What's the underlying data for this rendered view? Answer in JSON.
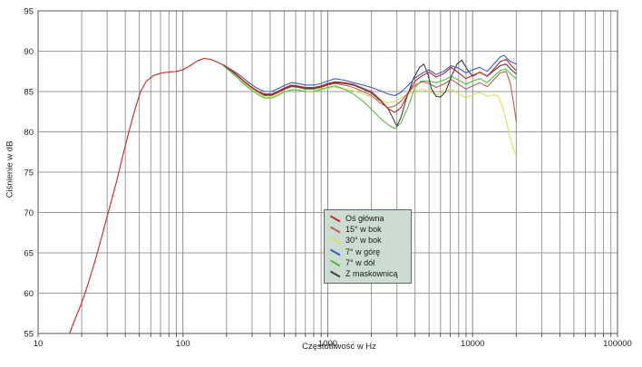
{
  "chart_data": {
    "type": "line",
    "title": "",
    "xlabel": "Częstotliwość w Hz",
    "ylabel": "Ciśnienie w dB",
    "x_scale": "log",
    "xlim": [
      10,
      100000
    ],
    "ylim": [
      55,
      95
    ],
    "x_ticks": [
      "10",
      "100",
      "1000",
      "10000",
      "100000"
    ],
    "y_ticks": [
      "95",
      "90",
      "85",
      "80",
      "75",
      "70",
      "65",
      "60",
      "55"
    ],
    "grid": true,
    "legend_position": "center",
    "legend_bg": "#cddcd3",
    "draw_order": [
      2,
      1,
      4,
      5,
      3,
      0
    ],
    "series": [
      {
        "name": "Oś główna",
        "color": "#c52727",
        "points": [
          [
            16.5,
            55
          ],
          [
            18,
            56.8
          ],
          [
            20,
            58.8
          ],
          [
            22,
            61
          ],
          [
            25,
            64.3
          ],
          [
            28,
            67.5
          ],
          [
            31,
            70.5
          ],
          [
            35,
            74
          ],
          [
            39,
            77.5
          ],
          [
            43,
            80.5
          ],
          [
            47,
            83
          ],
          [
            51,
            85
          ],
          [
            56,
            86.3
          ],
          [
            63,
            87
          ],
          [
            71,
            87.3
          ],
          [
            80,
            87.4
          ],
          [
            90,
            87.5
          ],
          [
            100,
            87.7
          ],
          [
            112,
            88.2
          ],
          [
            126,
            88.8
          ],
          [
            140,
            89.1
          ],
          [
            155,
            89.0
          ],
          [
            170,
            88.7
          ],
          [
            190,
            88.3
          ],
          [
            212,
            87.7
          ],
          [
            235,
            87.1
          ],
          [
            260,
            86.4
          ],
          [
            290,
            85.7
          ],
          [
            325,
            85.1
          ],
          [
            365,
            84.7
          ],
          [
            410,
            84.7
          ],
          [
            460,
            85.1
          ],
          [
            510,
            85.5
          ],
          [
            560,
            85.8
          ],
          [
            620,
            85.7
          ],
          [
            700,
            85.5
          ],
          [
            800,
            85.5
          ],
          [
            900,
            85.7
          ],
          [
            1000,
            86.0
          ],
          [
            1120,
            86.2
          ],
          [
            1300,
            86.1
          ],
          [
            1500,
            85.9
          ],
          [
            1750,
            85.4
          ],
          [
            2000,
            85.0
          ],
          [
            2300,
            84.0
          ],
          [
            2600,
            82.9
          ],
          [
            2900,
            82.4
          ],
          [
            3200,
            83.0
          ],
          [
            3600,
            84.8
          ],
          [
            4000,
            86.3
          ],
          [
            4500,
            87.0
          ],
          [
            5000,
            87.4
          ],
          [
            5600,
            86.8
          ],
          [
            6300,
            87.2
          ],
          [
            7100,
            88.0
          ],
          [
            8000,
            87.3
          ],
          [
            9000,
            86.6
          ],
          [
            10000,
            87.0
          ],
          [
            11200,
            87.4
          ],
          [
            12600,
            86.9
          ],
          [
            14000,
            87.8
          ],
          [
            15500,
            88.7
          ],
          [
            17000,
            89.0
          ],
          [
            18500,
            88.2
          ],
          [
            20000,
            87.6
          ]
        ]
      },
      {
        "name": "15° w bok",
        "color": "#bd5f52",
        "points": [
          [
            190,
            88.3
          ],
          [
            212,
            87.6
          ],
          [
            235,
            87.0
          ],
          [
            260,
            86.3
          ],
          [
            290,
            85.6
          ],
          [
            325,
            85.0
          ],
          [
            365,
            84.5
          ],
          [
            410,
            84.5
          ],
          [
            460,
            84.9
          ],
          [
            510,
            85.3
          ],
          [
            560,
            85.6
          ],
          [
            620,
            85.5
          ],
          [
            700,
            85.3
          ],
          [
            800,
            85.3
          ],
          [
            900,
            85.5
          ],
          [
            1000,
            85.8
          ],
          [
            1120,
            86.0
          ],
          [
            1300,
            85.8
          ],
          [
            1500,
            85.5
          ],
          [
            1750,
            85.0
          ],
          [
            2000,
            84.5
          ],
          [
            2300,
            83.6
          ],
          [
            2600,
            83.0
          ],
          [
            2900,
            83.2
          ],
          [
            3200,
            83.8
          ],
          [
            3600,
            84.9
          ],
          [
            4000,
            85.8
          ],
          [
            4500,
            86.2
          ],
          [
            5000,
            86.0
          ],
          [
            5600,
            85.5
          ],
          [
            6300,
            85.9
          ],
          [
            7100,
            86.5
          ],
          [
            8000,
            85.9
          ],
          [
            9000,
            85.3
          ],
          [
            10000,
            85.7
          ],
          [
            11200,
            86.1
          ],
          [
            12600,
            85.6
          ],
          [
            14000,
            86.5
          ],
          [
            15500,
            87.3
          ],
          [
            17000,
            87.5
          ],
          [
            18200,
            86.0
          ],
          [
            19200,
            83.5
          ],
          [
            20000,
            81.3
          ]
        ]
      },
      {
        "name": "30° w bok",
        "color": "#d8e256",
        "points": [
          [
            190,
            88.2
          ],
          [
            212,
            87.5
          ],
          [
            235,
            86.8
          ],
          [
            260,
            86.1
          ],
          [
            290,
            85.4
          ],
          [
            325,
            84.8
          ],
          [
            365,
            84.3
          ],
          [
            410,
            84.3
          ],
          [
            460,
            84.7
          ],
          [
            510,
            85.0
          ],
          [
            560,
            85.2
          ],
          [
            620,
            85.2
          ],
          [
            700,
            85.0
          ],
          [
            800,
            85.0
          ],
          [
            900,
            85.2
          ],
          [
            1000,
            85.4
          ],
          [
            1120,
            85.5
          ],
          [
            1300,
            85.3
          ],
          [
            1500,
            85.1
          ],
          [
            1750,
            84.7
          ],
          [
            2000,
            84.3
          ],
          [
            2300,
            83.9
          ],
          [
            2600,
            83.6
          ],
          [
            2900,
            83.8
          ],
          [
            3200,
            84.2
          ],
          [
            3600,
            84.7
          ],
          [
            4000,
            85.1
          ],
          [
            4500,
            85.3
          ],
          [
            5000,
            85.0
          ],
          [
            5600,
            84.6
          ],
          [
            6300,
            84.9
          ],
          [
            7100,
            85.3
          ],
          [
            8000,
            84.7
          ],
          [
            9000,
            84.2
          ],
          [
            10000,
            84.6
          ],
          [
            11200,
            84.9
          ],
          [
            12600,
            84.4
          ],
          [
            14000,
            84.6
          ],
          [
            15000,
            84.4
          ],
          [
            16000,
            83.2
          ],
          [
            17000,
            81.5
          ],
          [
            18000,
            79.5
          ],
          [
            19000,
            78.0
          ],
          [
            19800,
            77.2
          ]
        ]
      },
      {
        "name": "7° w górę",
        "color": "#3b5cc0",
        "points": [
          [
            190,
            88.3
          ],
          [
            212,
            87.8
          ],
          [
            235,
            87.3
          ],
          [
            260,
            86.7
          ],
          [
            290,
            86.0
          ],
          [
            325,
            85.4
          ],
          [
            365,
            85.0
          ],
          [
            410,
            85.0
          ],
          [
            460,
            85.4
          ],
          [
            510,
            85.8
          ],
          [
            560,
            86.1
          ],
          [
            620,
            86.0
          ],
          [
            700,
            85.8
          ],
          [
            800,
            85.8
          ],
          [
            900,
            86.0
          ],
          [
            1000,
            86.3
          ],
          [
            1120,
            86.6
          ],
          [
            1300,
            86.4
          ],
          [
            1500,
            86.1
          ],
          [
            1750,
            85.8
          ],
          [
            2000,
            85.5
          ],
          [
            2300,
            85.1
          ],
          [
            2600,
            84.7
          ],
          [
            2900,
            84.5
          ],
          [
            3200,
            84.9
          ],
          [
            3600,
            85.8
          ],
          [
            4000,
            86.7
          ],
          [
            4500,
            87.3
          ],
          [
            5000,
            87.7
          ],
          [
            5600,
            87.1
          ],
          [
            6300,
            87.5
          ],
          [
            7100,
            88.2
          ],
          [
            8000,
            87.9
          ],
          [
            9000,
            87.3
          ],
          [
            10000,
            87.7
          ],
          [
            11200,
            88.0
          ],
          [
            12600,
            87.5
          ],
          [
            14000,
            88.4
          ],
          [
            15500,
            89.3
          ],
          [
            16500,
            89.5
          ],
          [
            18000,
            88.8
          ],
          [
            20000,
            88.4
          ]
        ]
      },
      {
        "name": "7° w dół",
        "color": "#4cc13c",
        "points": [
          [
            190,
            88.2
          ],
          [
            212,
            87.5
          ],
          [
            235,
            86.8
          ],
          [
            260,
            86.0
          ],
          [
            290,
            85.3
          ],
          [
            325,
            84.7
          ],
          [
            365,
            84.2
          ],
          [
            410,
            84.2
          ],
          [
            460,
            84.6
          ],
          [
            510,
            85.0
          ],
          [
            560,
            85.2
          ],
          [
            620,
            85.2
          ],
          [
            700,
            85.0
          ],
          [
            800,
            85.0
          ],
          [
            900,
            85.3
          ],
          [
            1000,
            85.5
          ],
          [
            1120,
            85.7
          ],
          [
            1300,
            85.3
          ],
          [
            1500,
            84.7
          ],
          [
            1750,
            83.8
          ],
          [
            2000,
            82.8
          ],
          [
            2300,
            81.7
          ],
          [
            2600,
            80.9
          ],
          [
            2900,
            80.4
          ],
          [
            3200,
            81.1
          ],
          [
            3600,
            83.2
          ],
          [
            4000,
            85.5
          ],
          [
            4400,
            86.3
          ],
          [
            5000,
            86.3
          ],
          [
            5600,
            86.1
          ],
          [
            6300,
            86.4
          ],
          [
            7100,
            86.9
          ],
          [
            8000,
            86.4
          ],
          [
            9000,
            85.9
          ],
          [
            10000,
            86.3
          ],
          [
            11200,
            86.6
          ],
          [
            12600,
            86.1
          ],
          [
            14000,
            86.9
          ],
          [
            15500,
            87.6
          ],
          [
            17000,
            87.8
          ],
          [
            18500,
            87.1
          ],
          [
            20000,
            86.6
          ]
        ]
      },
      {
        "name": "Z maskownicą",
        "color": "#3f3f3f",
        "points": [
          [
            190,
            88.3
          ],
          [
            212,
            87.7
          ],
          [
            235,
            87.1
          ],
          [
            260,
            86.4
          ],
          [
            290,
            85.7
          ],
          [
            325,
            85.1
          ],
          [
            365,
            84.6
          ],
          [
            410,
            84.6
          ],
          [
            460,
            85.0
          ],
          [
            510,
            85.4
          ],
          [
            560,
            85.7
          ],
          [
            620,
            85.6
          ],
          [
            700,
            85.4
          ],
          [
            800,
            85.4
          ],
          [
            900,
            85.6
          ],
          [
            1000,
            85.9
          ],
          [
            1120,
            86.1
          ],
          [
            1300,
            86.0
          ],
          [
            1500,
            85.8
          ],
          [
            1750,
            85.3
          ],
          [
            2000,
            84.8
          ],
          [
            2300,
            83.9
          ],
          [
            2600,
            82.9
          ],
          [
            2800,
            81.8
          ],
          [
            3000,
            80.7
          ],
          [
            3200,
            81.8
          ],
          [
            3500,
            84.2
          ],
          [
            3900,
            86.6
          ],
          [
            4300,
            88.0
          ],
          [
            4600,
            88.4
          ],
          [
            4900,
            87.2
          ],
          [
            5200,
            85.3
          ],
          [
            5600,
            84.4
          ],
          [
            6000,
            84.3
          ],
          [
            6500,
            85.0
          ],
          [
            7100,
            86.8
          ],
          [
            7800,
            88.4
          ],
          [
            8400,
            88.9
          ],
          [
            9200,
            87.7
          ],
          [
            10000,
            86.9
          ],
          [
            11200,
            87.4
          ],
          [
            12600,
            86.9
          ],
          [
            14000,
            87.6
          ],
          [
            15500,
            88.2
          ],
          [
            17000,
            88.4
          ],
          [
            18500,
            87.7
          ],
          [
            20000,
            87.2
          ]
        ]
      }
    ]
  },
  "colors": {
    "grid_minor": "#9b9b9b",
    "grid_major": "#8a8a8a",
    "border": "#555555",
    "text": "#222222"
  }
}
